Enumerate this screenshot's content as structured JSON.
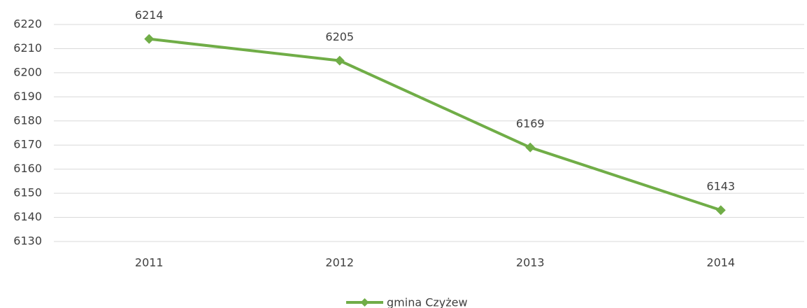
{
  "chart_data": {
    "type": "line",
    "categories": [
      "2011",
      "2012",
      "2013",
      "2014"
    ],
    "series": [
      {
        "name": "gmina Czyżew",
        "color": "#70ad47",
        "values": [
          6214,
          6205,
          6169,
          6143
        ]
      }
    ],
    "ylim": [
      6130,
      6220
    ],
    "yticks": [
      6130,
      6140,
      6150,
      6160,
      6170,
      6180,
      6190,
      6200,
      6210,
      6220
    ],
    "grid": true,
    "legend": "bottom"
  }
}
